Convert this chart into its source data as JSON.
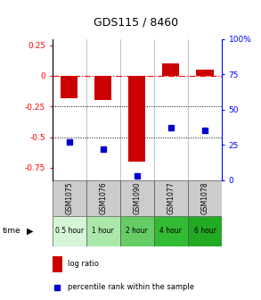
{
  "title": "GDS115 / 8460",
  "samples": [
    "GSM1075",
    "GSM1076",
    "GSM1090",
    "GSM1077",
    "GSM1078"
  ],
  "time_labels": [
    "0.5 hour",
    "1 hour",
    "2 hour",
    "4 hour",
    "6 hour"
  ],
  "time_colors": [
    "#d6f5d6",
    "#aae8aa",
    "#66cc66",
    "#33bb33",
    "#22aa22"
  ],
  "log_ratios": [
    -0.18,
    -0.2,
    -0.7,
    0.1,
    0.05
  ],
  "percentile_ranks": [
    27,
    22,
    3,
    37,
    35
  ],
  "bar_color": "#cc0000",
  "dot_color": "#0000cc",
  "ylim_left": [
    -0.85,
    0.3
  ],
  "ylim_right": [
    0,
    100
  ],
  "yticks_left": [
    0.25,
    0.0,
    -0.25,
    -0.5,
    -0.75
  ],
  "yticks_right": [
    100,
    75,
    50,
    25,
    0
  ],
  "dotted_lines": [
    -0.25,
    -0.5
  ],
  "gsm_bg": "#cccccc",
  "legend_log_ratio": "log ratio",
  "legend_percentile": "percentile rank within the sample"
}
